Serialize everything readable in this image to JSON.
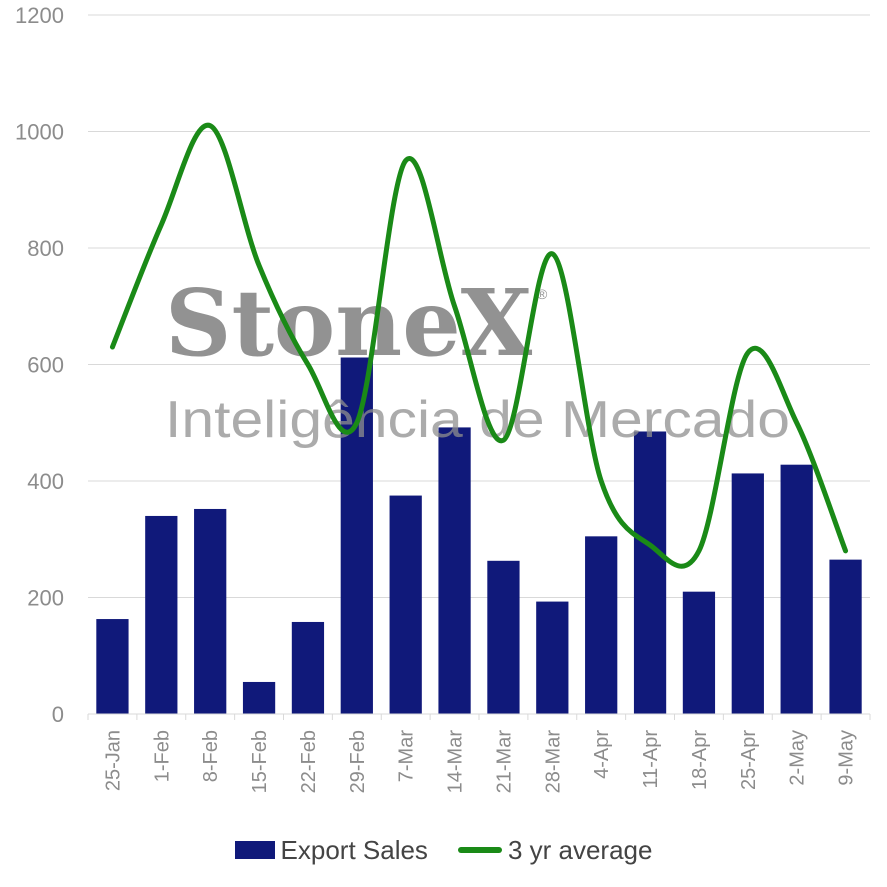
{
  "chart_data": {
    "type": "bar",
    "categories": [
      "25-Jan",
      "1-Feb",
      "8-Feb",
      "15-Feb",
      "22-Feb",
      "29-Feb",
      "7-Mar",
      "14-Mar",
      "21-Mar",
      "28-Mar",
      "4-Apr",
      "11-Apr",
      "18-Apr",
      "25-Apr",
      "2-May",
      "9-May"
    ],
    "series": [
      {
        "name": "Export Sales",
        "type": "bar",
        "color": "#10197a",
        "values": [
          163,
          340,
          352,
          55,
          158,
          612,
          375,
          492,
          263,
          193,
          305,
          485,
          210,
          413,
          428,
          265
        ]
      },
      {
        "name": "3 yr average",
        "type": "line",
        "color": "#1a8a17",
        "values": [
          630,
          840,
          1010,
          770,
          600,
          500,
          950,
          700,
          470,
          790,
          400,
          290,
          280,
          620,
          500,
          280
        ]
      }
    ],
    "yticks": [
      "0",
      "200",
      "400",
      "600",
      "800",
      "1000",
      "1200"
    ],
    "ylim": [
      0,
      1200
    ],
    "grid": true,
    "legend_position": "bottom"
  },
  "watermark": {
    "logo": "StoneX",
    "registered": "®",
    "subtitle": "Inteligência de Mercado"
  }
}
